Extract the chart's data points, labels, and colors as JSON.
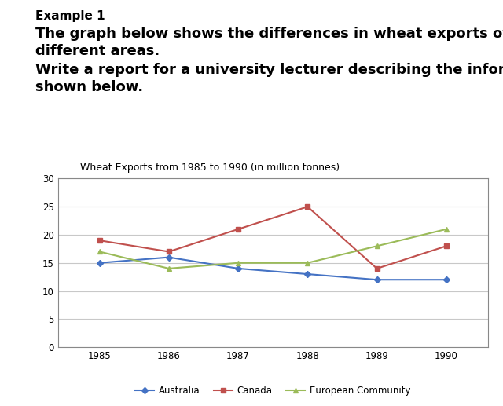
{
  "title": "Wheat Exports from 1985 to 1990 (in million tonnes)",
  "header_line1": "Example 1",
  "header_line2": "The graph below shows the differences in wheat exports over three\ndifferent areas.",
  "header_line3": "Write a report for a university lecturer describing the information\nshown below.",
  "years": [
    1985,
    1986,
    1987,
    1988,
    1989,
    1990
  ],
  "australia": [
    15,
    16,
    14,
    13,
    12,
    12
  ],
  "canada": [
    19,
    17,
    21,
    25,
    14,
    18
  ],
  "european_community": [
    17,
    14,
    15,
    15,
    18,
    21
  ],
  "australia_color": "#4472C4",
  "canada_color": "#C0504D",
  "ec_color": "#9BBB59",
  "ylim": [
    0,
    30
  ],
  "yticks": [
    0,
    5,
    10,
    15,
    20,
    25,
    30
  ],
  "background_color": "#ffffff",
  "plot_bg_color": "#ffffff",
  "grid_color": "#c8c8c8",
  "legend_labels": [
    "Australia",
    "Canada",
    "European Community"
  ],
  "title_fontsize": 9,
  "header1_fontsize": 11,
  "header2_fontsize": 13,
  "header3_fontsize": 13
}
